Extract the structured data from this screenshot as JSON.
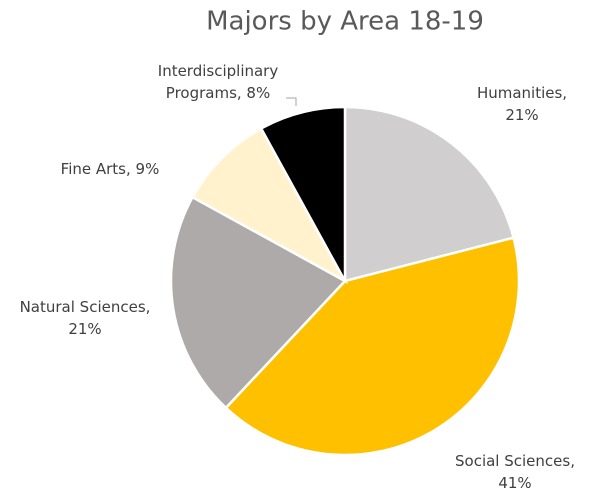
{
  "chart_data": {
    "type": "pie",
    "title": "Majors by Area 18-19",
    "categories": [
      "Humanities",
      "Social Sciences",
      "Natural Sciences",
      "Fine Arts",
      "Interdisciplinary Programs"
    ],
    "values": [
      21,
      41,
      21,
      9,
      8
    ],
    "value_labels": [
      "Humanities, 21%",
      "Social Sciences, 41%",
      "Natural Sciences, 21%",
      "Fine Arts, 9%",
      "Interdisciplinary Programs, 8%"
    ],
    "colors": [
      "#d0cece",
      "#ffc000",
      "#aeaaaa",
      "#fff2cc",
      "#000000"
    ]
  }
}
